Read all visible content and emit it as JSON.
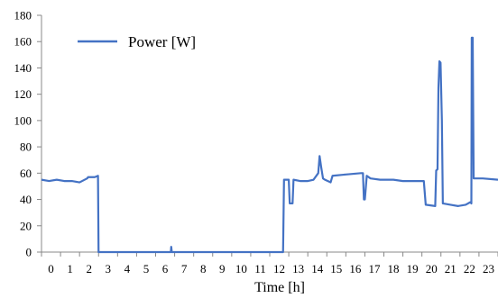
{
  "chart_data": {
    "type": "line",
    "title": "",
    "xlabel": "Time [h]",
    "ylabel": "",
    "xlim": [
      0,
      24
    ],
    "ylim": [
      0,
      180
    ],
    "x_ticks": [
      0,
      1,
      2,
      3,
      4,
      5,
      6,
      7,
      8,
      9,
      10,
      11,
      12,
      13,
      14,
      15,
      16,
      17,
      18,
      19,
      20,
      21,
      22,
      23
    ],
    "y_ticks": [
      0,
      20,
      40,
      60,
      80,
      100,
      120,
      140,
      160,
      180
    ],
    "grid": false,
    "legend_position": "top-left",
    "color": "#4472c4",
    "series": [
      {
        "name": "Power [W]",
        "x": [
          0,
          0.4,
          0.8,
          1.2,
          1.6,
          2.0,
          2.4,
          2.45,
          2.8,
          2.97,
          3.0,
          6.8,
          6.82,
          6.85,
          6.9,
          12.7,
          12.75,
          13.0,
          13.05,
          13.2,
          13.25,
          13.6,
          14.0,
          14.3,
          14.55,
          14.62,
          14.7,
          14.8,
          14.9,
          15.2,
          15.3,
          16.0,
          16.8,
          16.9,
          16.95,
          17.0,
          17.1,
          17.3,
          17.8,
          18.5,
          19.0,
          19.6,
          20.1,
          20.2,
          20.7,
          20.75,
          20.82,
          20.87,
          20.92,
          20.98,
          21.05,
          21.1,
          21.5,
          21.9,
          22.3,
          22.55,
          22.6,
          22.62,
          22.67,
          22.72,
          23.2,
          24
        ],
        "y": [
          55,
          54,
          55,
          54,
          54,
          53,
          56,
          57,
          57,
          58,
          0,
          0,
          4,
          0,
          0,
          0,
          55,
          55,
          37,
          37,
          55,
          54,
          54,
          55,
          60,
          73,
          65,
          56,
          55,
          53,
          58,
          59,
          60,
          60,
          40,
          40,
          58,
          56,
          55,
          55,
          54,
          54,
          54,
          36,
          35,
          62,
          63,
          125,
          145,
          144,
          100,
          37,
          36,
          35,
          36,
          38,
          37,
          163,
          163,
          56,
          56,
          55
        ]
      }
    ]
  }
}
